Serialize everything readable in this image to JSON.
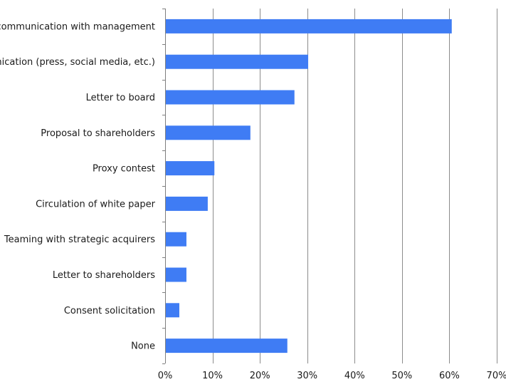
{
  "chart_data": {
    "type": "bar",
    "orientation": "horizontal",
    "categories": [
      "Private communication with management",
      "Public communication (press, social media, etc.)",
      "Letter to board",
      "Proposal to shareholders",
      "Proxy contest",
      "Circulation of white paper",
      "Teaming with strategic acquirers",
      "Letter to shareholders",
      "Consent solicitation",
      "None"
    ],
    "values": [
      60.5,
      30.2,
      27.3,
      18.0,
      10.4,
      9.0,
      4.5,
      4.5,
      3.0,
      25.8
    ],
    "unit": "%",
    "xlim": [
      0,
      70
    ],
    "x_ticks": [
      0,
      10,
      20,
      30,
      40,
      50,
      60,
      70
    ],
    "x_tick_labels": [
      "0%",
      "10%",
      "20%",
      "30%",
      "40%",
      "50%",
      "60%",
      "70%"
    ],
    "grid": "vertical",
    "legend": "none",
    "title": "",
    "xlabel": "",
    "ylabel": "",
    "colors": {
      "bar": "#3f7cf4",
      "grid": "#8c8c8c",
      "axis": "#7f7f7f"
    }
  }
}
